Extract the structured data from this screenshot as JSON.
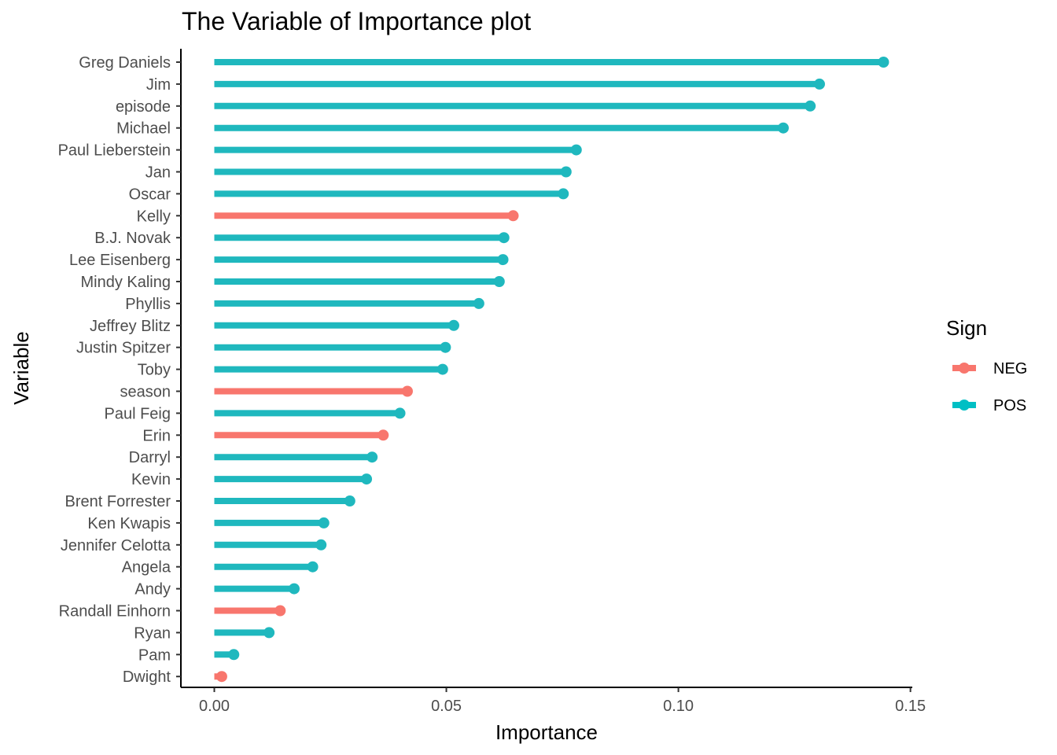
{
  "chart_data": {
    "type": "lollipop",
    "title": "The Variable of Importance plot",
    "xlabel": "Importance",
    "ylabel": "Variable",
    "xlim": [
      -0.0072,
      0.1504
    ],
    "xticks": [
      0.0,
      0.05,
      0.1,
      0.15
    ],
    "xtick_labels": [
      "0.00",
      "0.05",
      "0.10",
      "0.15"
    ],
    "grid": false,
    "legend": {
      "title": "Sign",
      "position": "right",
      "entries": [
        {
          "label": "NEG",
          "color": "#F8766D"
        },
        {
          "label": "POS",
          "color": "#00BFC4"
        }
      ]
    },
    "colors": {
      "NEG": "#F8766D",
      "POS": "#1FB8BE"
    },
    "points": [
      {
        "variable": "Greg Daniels",
        "importance": 0.1442,
        "sign": "POS"
      },
      {
        "variable": "Jim",
        "importance": 0.1304,
        "sign": "POS"
      },
      {
        "variable": "episode",
        "importance": 0.1284,
        "sign": "POS"
      },
      {
        "variable": "Michael",
        "importance": 0.1226,
        "sign": "POS"
      },
      {
        "variable": "Paul Lieberstein",
        "importance": 0.078,
        "sign": "POS"
      },
      {
        "variable": "Jan",
        "importance": 0.0758,
        "sign": "POS"
      },
      {
        "variable": "Oscar",
        "importance": 0.0752,
        "sign": "POS"
      },
      {
        "variable": "Kelly",
        "importance": 0.0644,
        "sign": "NEG"
      },
      {
        "variable": "B.J. Novak",
        "importance": 0.0624,
        "sign": "POS"
      },
      {
        "variable": "Lee Eisenberg",
        "importance": 0.0622,
        "sign": "POS"
      },
      {
        "variable": "Mindy Kaling",
        "importance": 0.0614,
        "sign": "POS"
      },
      {
        "variable": "Phyllis",
        "importance": 0.057,
        "sign": "POS"
      },
      {
        "variable": "Jeffrey Blitz",
        "importance": 0.0516,
        "sign": "POS"
      },
      {
        "variable": "Justin Spitzer",
        "importance": 0.0498,
        "sign": "POS"
      },
      {
        "variable": "Toby",
        "importance": 0.0492,
        "sign": "POS"
      },
      {
        "variable": "season",
        "importance": 0.0416,
        "sign": "NEG"
      },
      {
        "variable": "Paul Feig",
        "importance": 0.04,
        "sign": "POS"
      },
      {
        "variable": "Erin",
        "importance": 0.0364,
        "sign": "NEG"
      },
      {
        "variable": "Darryl",
        "importance": 0.034,
        "sign": "POS"
      },
      {
        "variable": "Kevin",
        "importance": 0.0328,
        "sign": "POS"
      },
      {
        "variable": "Brent Forrester",
        "importance": 0.0292,
        "sign": "POS"
      },
      {
        "variable": "Ken Kwapis",
        "importance": 0.0236,
        "sign": "POS"
      },
      {
        "variable": "Jennifer Celotta",
        "importance": 0.023,
        "sign": "POS"
      },
      {
        "variable": "Angela",
        "importance": 0.0212,
        "sign": "POS"
      },
      {
        "variable": "Andy",
        "importance": 0.0172,
        "sign": "POS"
      },
      {
        "variable": "Randall Einhorn",
        "importance": 0.0142,
        "sign": "NEG"
      },
      {
        "variable": "Ryan",
        "importance": 0.0118,
        "sign": "POS"
      },
      {
        "variable": "Pam",
        "importance": 0.0042,
        "sign": "POS"
      },
      {
        "variable": "Dwight",
        "importance": 0.0016,
        "sign": "NEG"
      }
    ]
  }
}
